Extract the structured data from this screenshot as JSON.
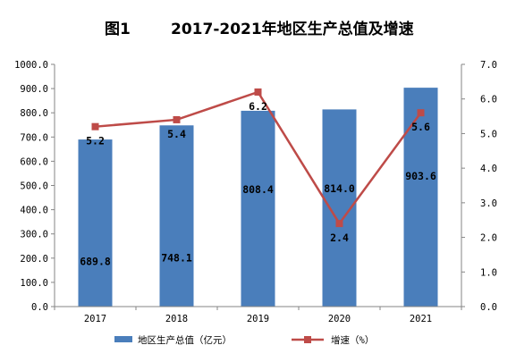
{
  "chart_data": {
    "type": "bar",
    "title_fig": "图1",
    "title": "2017-2021年地区生产总值及增速",
    "categories": [
      "2017",
      "2018",
      "2019",
      "2020",
      "2021"
    ],
    "series": [
      {
        "name": "地区生产总值（亿元）",
        "type": "bar",
        "axis": "left",
        "values": [
          689.8,
          748.1,
          808.4,
          814.0,
          903.6
        ],
        "labels": [
          "689.8",
          "748.1",
          "808.4",
          "814.0",
          "903.6"
        ]
      },
      {
        "name": "增速（%）",
        "type": "line",
        "axis": "right",
        "values": [
          5.2,
          5.4,
          6.2,
          2.4,
          5.6
        ],
        "labels": [
          "5.2",
          "5.4",
          "6.2",
          "2.4",
          "5.6"
        ]
      }
    ],
    "ylim_left": [
      0,
      1000
    ],
    "ylim_right": [
      0,
      7
    ],
    "yticks_left": [
      "0.0",
      "100.0",
      "200.0",
      "300.0",
      "400.0",
      "500.0",
      "600.0",
      "700.0",
      "800.0",
      "900.0",
      "1000.0"
    ],
    "yticks_right": [
      "0.0",
      "1.0",
      "2.0",
      "3.0",
      "4.0",
      "5.0",
      "6.0",
      "7.0"
    ],
    "grid": false,
    "legend_position": "bottom",
    "colors": {
      "bar": "#4a7ebb",
      "line": "#be4b48",
      "axis": "#868686",
      "label": "#000000"
    }
  }
}
